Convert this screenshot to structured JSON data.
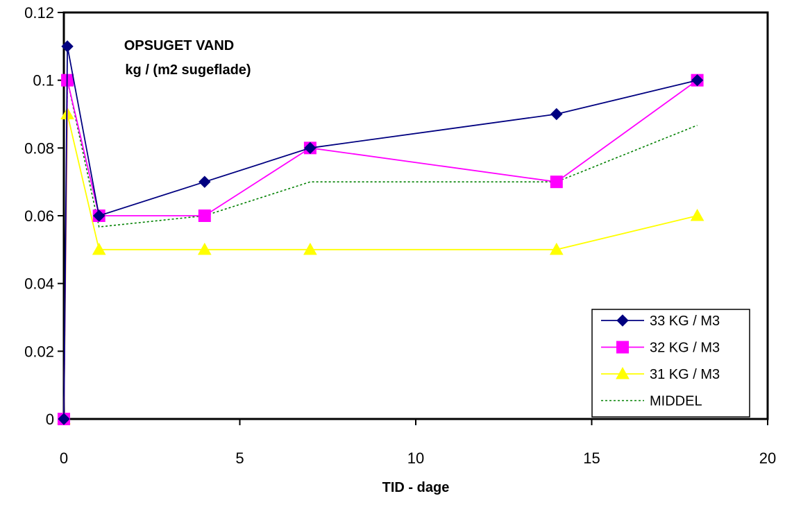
{
  "chart_data": {
    "type": "line",
    "title": "OPSUGET VAND",
    "subtitle": "kg / (m2 sugeflade)",
    "xlabel": "TID - dage",
    "ylabel": "",
    "xlim": [
      0,
      20
    ],
    "ylim": [
      0,
      0.12
    ],
    "xticks": [
      0,
      5,
      10,
      15,
      20
    ],
    "yticks": [
      0,
      0.02,
      0.04,
      0.06,
      0.08,
      0.1,
      0.12
    ],
    "xtick_labels": [
      "0",
      "5",
      "10",
      "15",
      "20"
    ],
    "ytick_labels": [
      "0",
      "0.02",
      "0.04",
      "0.06",
      "0.08",
      "0.1",
      "0.12"
    ],
    "grid": false,
    "legend_position": "bottom-right",
    "series": [
      {
        "name": "33 KG / M3",
        "color": "#000080",
        "marker": "diamond",
        "dashed": false,
        "x": [
          0,
          0.1,
          1,
          4,
          7,
          14,
          18
        ],
        "y": [
          0,
          0.11,
          0.06,
          0.07,
          0.08,
          0.09,
          0.1
        ]
      },
      {
        "name": "32 KG / M3",
        "color": "#ff00ff",
        "marker": "square",
        "dashed": false,
        "x": [
          0,
          0.1,
          1,
          4,
          7,
          14,
          18
        ],
        "y": [
          0,
          0.1,
          0.06,
          0.06,
          0.08,
          0.07,
          0.1
        ]
      },
      {
        "name": "31 KG / M3",
        "color": "#ffff00",
        "marker": "triangle",
        "dashed": false,
        "x": [
          0,
          0.1,
          1,
          4,
          7,
          14,
          18
        ],
        "y": [
          0,
          0.09,
          0.05,
          0.05,
          0.05,
          0.05,
          0.06
        ]
      },
      {
        "name": "MIDDEL",
        "color": "#008000",
        "marker": "none",
        "dashed": true,
        "x": [
          0,
          0.1,
          1,
          4,
          7,
          14,
          18
        ],
        "y": [
          0,
          0.1,
          0.0567,
          0.06,
          0.07,
          0.07,
          0.0867
        ]
      }
    ]
  }
}
